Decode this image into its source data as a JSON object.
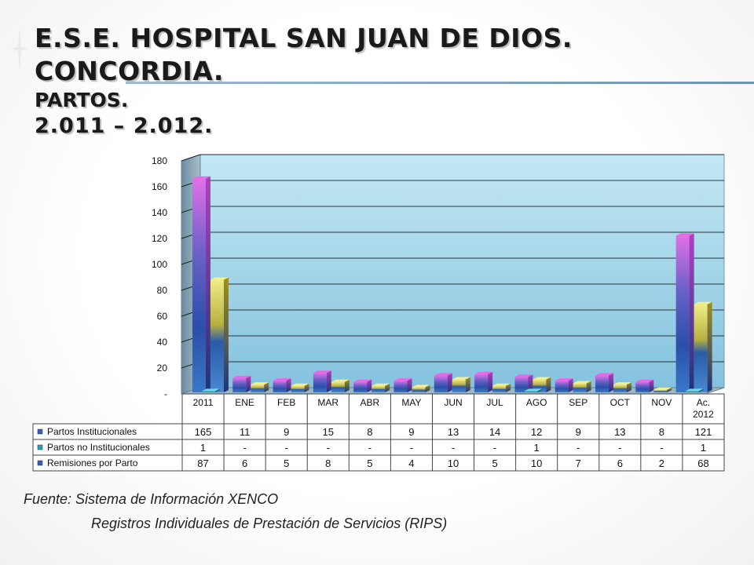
{
  "title": {
    "line1": "E.S.E. HOSPITAL SAN JUAN DE DIOS.  CONCORDIA.",
    "line2": "PARTOS.",
    "line3": "2.011 – 2.012."
  },
  "colors": {
    "series1": "#3060b8",
    "series2": "#28a0b8",
    "series3": "#c8c040",
    "bar_top1": "#e868e8",
    "wall": "#9cd0e6"
  },
  "chart_data": {
    "type": "bar",
    "title": "",
    "categories": [
      "2011",
      "ENE",
      "FEB",
      "MAR",
      "ABR",
      "MAY",
      "JUN",
      "JUL",
      "AGO",
      "SEP",
      "OCT",
      "NOV",
      "Ac. 2012"
    ],
    "y_ticks": [
      "-",
      "20",
      "40",
      "60",
      "80",
      "100",
      "120",
      "140",
      "160",
      "180"
    ],
    "ylim": [
      0,
      180
    ],
    "grid": true,
    "legend": "data-table-below",
    "series": [
      {
        "name": "Partos Institucionales",
        "values": [
          165,
          11,
          9,
          15,
          8,
          9,
          13,
          14,
          12,
          9,
          13,
          8,
          121
        ],
        "labels": [
          "165",
          "11",
          "9",
          "15",
          "8",
          "9",
          "13",
          "14",
          "12",
          "9",
          "13",
          "8",
          "121"
        ]
      },
      {
        "name": "Partos no Institucionales",
        "values": [
          1,
          0,
          0,
          0,
          0,
          0,
          0,
          0,
          1,
          0,
          0,
          0,
          1
        ],
        "labels": [
          "1",
          "-",
          "-",
          "-",
          "-",
          "-",
          "-",
          "-",
          "1",
          "-",
          "-",
          "-",
          "1"
        ]
      },
      {
        "name": "Remisiones por Parto",
        "values": [
          87,
          6,
          5,
          8,
          5,
          4,
          10,
          5,
          10,
          7,
          6,
          2,
          68
        ],
        "labels": [
          "87",
          "6",
          "5",
          "8",
          "5",
          "4",
          "10",
          "5",
          "10",
          "7",
          "6",
          "2",
          "68"
        ]
      }
    ]
  },
  "source": {
    "line1": "Fuente: Sistema de Información XENCO",
    "line2": "Registros Individuales de Prestación de Servicios (RIPS)"
  }
}
